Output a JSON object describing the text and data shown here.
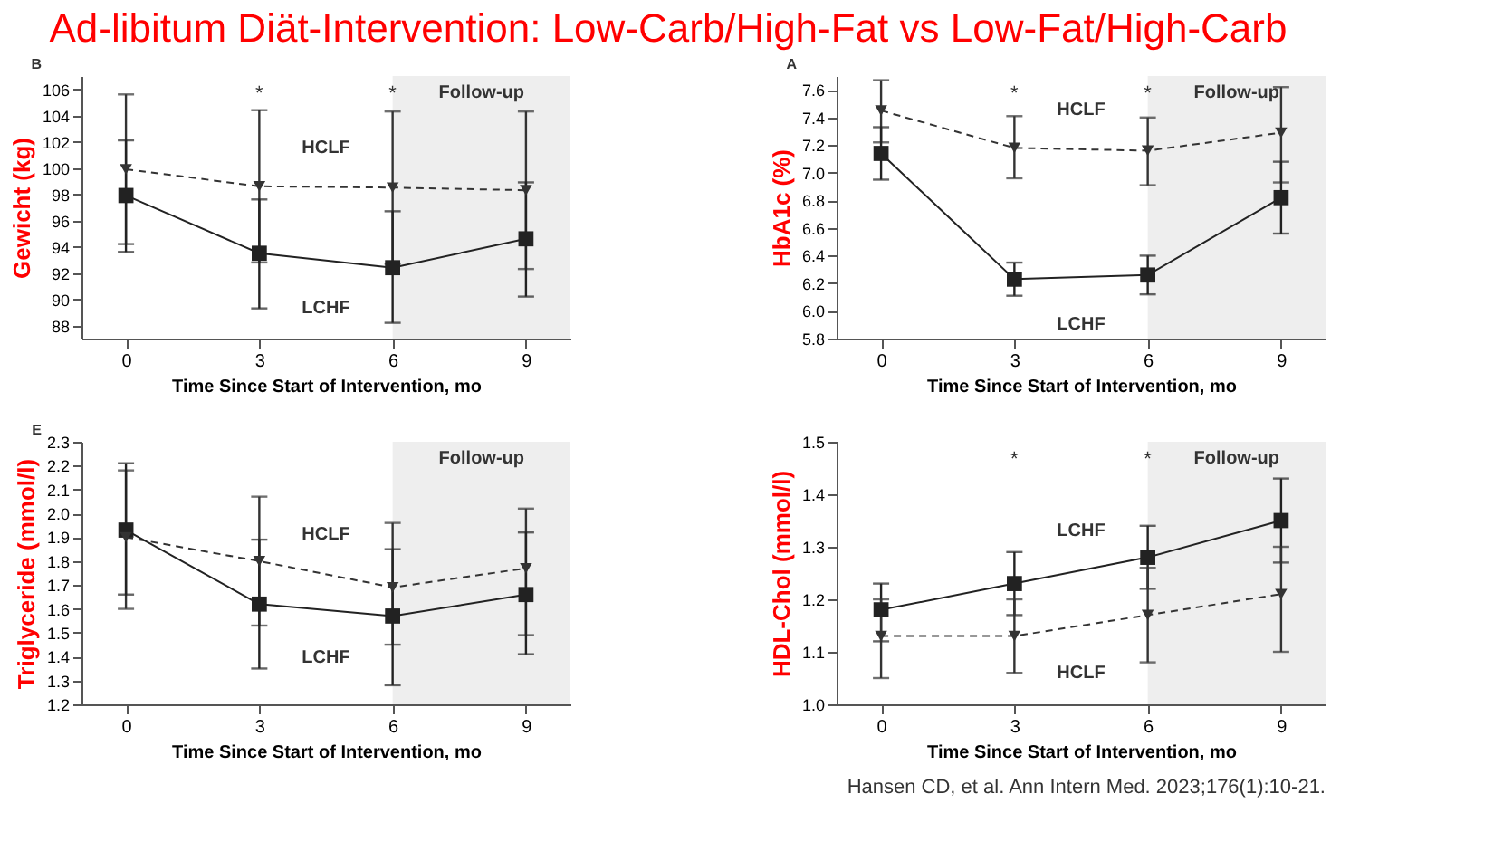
{
  "chart_data": [
    {
      "type": "line",
      "title": "Ad-libitum Diät-Intervention: Low-Carb/High-Fat vs Low-Fat/High-Carb",
      "ylabel": "Gewicht (kg)",
      "xlabel": "Time Since Start of Intervention, mo",
      "x": [
        0,
        3,
        6,
        9
      ],
      "xlim": [
        -1,
        10
      ],
      "xticks": [
        0,
        3,
        6,
        9
      ],
      "ylim": [
        87,
        107
      ],
      "yticks": [
        88,
        90,
        92,
        94,
        96,
        98,
        100,
        102,
        104,
        106
      ],
      "grid": false,
      "legend": false,
      "series": [
        {
          "name": "HCLF",
          "color": "#333333",
          "marker": "triangle",
          "line_style": "dashed",
          "values": [
            99.9,
            98.6,
            98.5,
            98.3
          ],
          "errors": [
            [
              94.2,
              105.6
            ],
            [
              92.8,
              104.4
            ],
            [
              92.7,
              104.3
            ],
            [
              92.3,
              104.3
            ]
          ]
        },
        {
          "name": "LCHF",
          "color": "#222222",
          "marker": "square",
          "line_style": "solid",
          "values": [
            97.9,
            93.5,
            92.4,
            94.6
          ],
          "errors": [
            [
              93.6,
              102.1
            ],
            [
              89.3,
              97.6
            ],
            [
              88.2,
              96.7
            ],
            [
              90.2,
              98.9
            ]
          ]
        }
      ],
      "bands": [
        {
          "axis": "x",
          "from": 6,
          "to": 10,
          "label": "Follow-up",
          "color": "#eeeeee"
        }
      ],
      "annotations": [
        "B",
        "*",
        "*"
      ]
    },
    {
      "type": "line",
      "ylabel": "HbA1c (%)",
      "xlabel": "Time Since Start of Intervention, mo",
      "x": [
        0,
        3,
        6,
        9
      ],
      "xlim": [
        -1,
        10
      ],
      "xticks": [
        0,
        3,
        6,
        9
      ],
      "ylim": [
        5.8,
        7.7
      ],
      "yticks": [
        5.8,
        {
          "value": 6,
          "label": "6.0"
        },
        6.2,
        6.4,
        6.6,
        6.8,
        {
          "value": 7,
          "label": "7.0"
        },
        7.2,
        7.4,
        7.6
      ],
      "grid": false,
      "legend": false,
      "series": [
        {
          "name": "HCLF",
          "color": "#333333",
          "marker": "triangle",
          "line_style": "dashed",
          "values": [
            7.45,
            7.18,
            7.16,
            7.29
          ],
          "errors": [
            [
              7.22,
              7.67
            ],
            [
              6.96,
              7.41
            ],
            [
              6.91,
              7.4
            ],
            [
              6.93,
              7.62
            ]
          ]
        },
        {
          "name": "LCHF",
          "color": "#222222",
          "marker": "square",
          "line_style": "solid",
          "values": [
            7.14,
            6.23,
            6.26,
            6.82
          ],
          "errors": [
            [
              6.95,
              7.33
            ],
            [
              6.11,
              6.35
            ],
            [
              6.12,
              6.4
            ],
            [
              6.56,
              7.08
            ]
          ]
        }
      ],
      "bands": [
        {
          "axis": "x",
          "from": 6,
          "to": 10,
          "label": "Follow-up",
          "color": "#eeeeee"
        }
      ],
      "annotations": [
        "A",
        "*",
        "*"
      ]
    },
    {
      "type": "line",
      "ylabel": "Triglyceride (mmol/l)",
      "xlabel": "Time Since Start of Intervention, mo",
      "x": [
        0,
        3,
        6,
        9
      ],
      "xlim": [
        -1,
        10
      ],
      "xticks": [
        0,
        3,
        6,
        9
      ],
      "ylim": [
        1.2,
        2.3
      ],
      "yticks": [
        1.2,
        1.3,
        1.4,
        1.5,
        1.6,
        1.7,
        1.8,
        1.9,
        {
          "value": 2,
          "label": "2.0"
        },
        2.1,
        2.2,
        2.3
      ],
      "grid": false,
      "legend": false,
      "series": [
        {
          "name": "HCLF",
          "color": "#333333",
          "marker": "triangle",
          "line_style": "dashed",
          "values": [
            1.9,
            1.8,
            1.69,
            1.77
          ],
          "errors": [
            [
              1.6,
              2.18
            ],
            [
              1.53,
              2.07
            ],
            [
              1.45,
              1.96
            ],
            [
              1.49,
              2.02
            ]
          ]
        },
        {
          "name": "LCHF",
          "color": "#222222",
          "marker": "square",
          "line_style": "solid",
          "values": [
            1.93,
            1.62,
            1.57,
            1.66
          ],
          "errors": [
            [
              1.66,
              2.21
            ],
            [
              1.35,
              1.89
            ],
            [
              1.28,
              1.85
            ],
            [
              1.41,
              1.92
            ]
          ]
        }
      ],
      "bands": [
        {
          "axis": "x",
          "from": 6,
          "to": 10,
          "label": "Follow-up",
          "color": "#eeeeee"
        }
      ],
      "annotations": [
        "E"
      ]
    },
    {
      "type": "line",
      "ylabel": "HDL-Chol (mmol/l)",
      "xlabel": "Time Since Start of Intervention, mo",
      "x": [
        0,
        3,
        6,
        9
      ],
      "xlim": [
        -1,
        10
      ],
      "xticks": [
        0,
        3,
        6,
        9
      ],
      "ylim": [
        1.0,
        1.5
      ],
      "yticks": [
        {
          "value": 1,
          "label": "1.0"
        },
        1.1,
        1.2,
        1.3,
        1.4,
        1.5
      ],
      "grid": false,
      "legend": false,
      "series": [
        {
          "name": "LCHF",
          "color": "#222222",
          "marker": "square",
          "line_style": "solid",
          "values": [
            1.18,
            1.23,
            1.28,
            1.35
          ],
          "errors": [
            [
              1.12,
              1.23
            ],
            [
              1.17,
              1.29
            ],
            [
              1.22,
              1.34
            ],
            [
              1.27,
              1.43
            ]
          ]
        },
        {
          "name": "HCLF",
          "color": "#333333",
          "marker": "triangle",
          "line_style": "dashed",
          "values": [
            1.13,
            1.13,
            1.17,
            1.21
          ],
          "errors": [
            [
              1.05,
              1.2
            ],
            [
              1.06,
              1.2
            ],
            [
              1.08,
              1.26
            ],
            [
              1.1,
              1.3
            ]
          ]
        }
      ],
      "bands": [
        {
          "axis": "x",
          "from": 6,
          "to": 10,
          "label": "Follow-up",
          "color": "#eeeeee"
        }
      ],
      "annotations": [
        "Hansen CD, et al. Ann Intern Med. 2023;176(1):10-21.",
        "*",
        "*"
      ]
    }
  ]
}
